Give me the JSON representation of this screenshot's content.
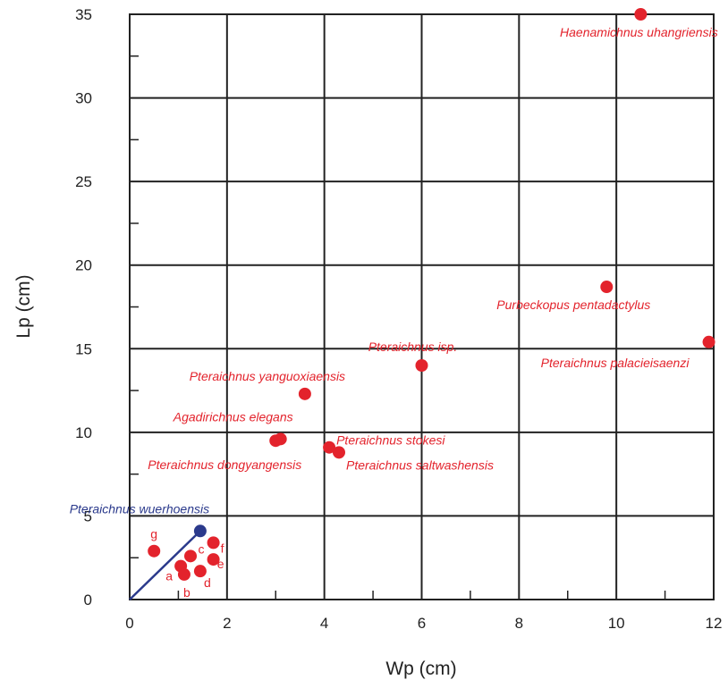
{
  "chart_data": {
    "type": "scatter",
    "xlabel": "Wp (cm)",
    "ylabel": "Lp (cm)",
    "xlim": [
      0,
      12
    ],
    "ylim": [
      0,
      35
    ],
    "xticks": [
      "0",
      "2",
      "4",
      "6",
      "8",
      "10",
      "12"
    ],
    "yticks": [
      "0",
      "5",
      "10",
      "15",
      "20",
      "25",
      "30",
      "35"
    ],
    "grid": true,
    "colors": {
      "red": "#e3232c",
      "blue": "#2b3a8c"
    },
    "labeled_points": [
      {
        "x": 10.5,
        "y": 35.0,
        "label": "Haenamichnus uhangriensis",
        "color": "red"
      },
      {
        "x": 9.8,
        "y": 18.7,
        "label": "Purbeckopus pentadactylus",
        "color": "red"
      },
      {
        "x": 11.9,
        "y": 15.4,
        "label": "Pteraichnus palacieisaenzi",
        "color": "red"
      },
      {
        "x": 6.0,
        "y": 14.0,
        "label": "Pteraichnus isp.",
        "color": "red"
      },
      {
        "x": 3.6,
        "y": 12.3,
        "label": "Pteraichnus yanguoxiaensis",
        "color": "red"
      },
      {
        "x": 3.1,
        "y": 9.6,
        "label": "Agadirichnus elegans",
        "color": "red"
      },
      {
        "x": 3.0,
        "y": 9.5,
        "label": "Pteraichnus dongyangensis",
        "color": "red"
      },
      {
        "x": 4.1,
        "y": 9.1,
        "label": "Pteraichnus stokesi",
        "color": "red"
      },
      {
        "x": 4.3,
        "y": 8.8,
        "label": "Pteraichnus saltwashensis",
        "color": "red"
      },
      {
        "x": 1.45,
        "y": 4.1,
        "label": "Pteraichnus wuerhoensis",
        "color": "blue"
      }
    ],
    "small_points": [
      {
        "x": 1.05,
        "y": 2.0,
        "label": "a"
      },
      {
        "x": 1.12,
        "y": 1.5,
        "label": "b"
      },
      {
        "x": 1.25,
        "y": 2.6,
        "label": "c"
      },
      {
        "x": 1.45,
        "y": 1.7,
        "label": "d"
      },
      {
        "x": 1.72,
        "y": 2.4,
        "label": "e"
      },
      {
        "x": 1.72,
        "y": 3.4,
        "label": "f"
      },
      {
        "x": 0.5,
        "y": 2.9,
        "label": "g"
      }
    ],
    "line": {
      "from": [
        0,
        0
      ],
      "to": [
        1.45,
        4.1
      ],
      "color": "blue"
    }
  }
}
